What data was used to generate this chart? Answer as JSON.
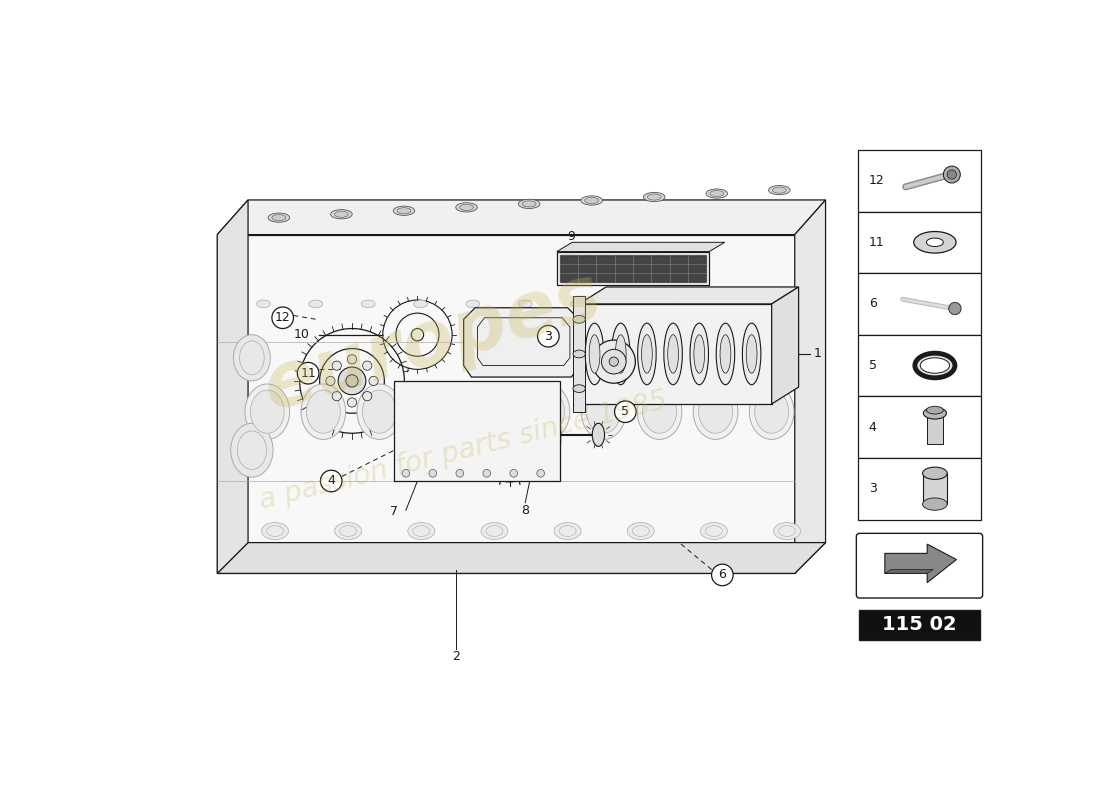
{
  "bg_color": "#ffffff",
  "line_color": "#1a1a1a",
  "mid_line": "#555555",
  "light_line": "#aaaaaa",
  "very_light": "#cccccc",
  "watermark_color": "#c8b85a",
  "page_code": "115 02",
  "sidebar_items": [
    {
      "num": "12",
      "shape": "bolt"
    },
    {
      "num": "11",
      "shape": "washer"
    },
    {
      "num": "6",
      "shape": "pin"
    },
    {
      "num": "5",
      "shape": "ring"
    },
    {
      "num": "4",
      "shape": "fitting"
    },
    {
      "num": "3",
      "shape": "cylinder"
    }
  ]
}
